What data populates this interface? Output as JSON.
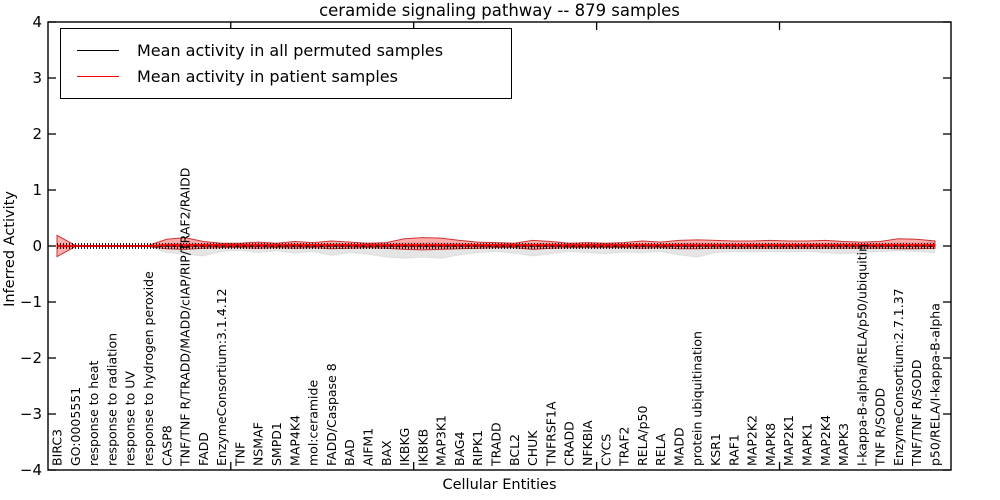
{
  "figure": {
    "title": "ceramide signaling pathway -- 879 samples"
  },
  "chart_data": {
    "type": "line",
    "title": "ceramide signaling pathway -- 879 samples",
    "xlabel": "Cellular Entities",
    "ylabel": "Inferred Activity",
    "ylim": [
      -4,
      4
    ],
    "ytick_labels": [
      "4",
      "3",
      "2",
      "1",
      "0",
      "−1",
      "−2",
      "−3",
      "−4"
    ],
    "ytick_values": [
      4,
      3,
      2,
      1,
      0,
      -1,
      -2,
      -3,
      -4
    ],
    "grid": false,
    "legend_position": "upper left",
    "colors": {
      "permuted_line": "#000000",
      "patient_line": "#ff0000",
      "permuted_band_fill": "rgba(0,0,0,0.10)",
      "patient_band_fill": "rgba(255,0,0,0.32)",
      "patient_band_edge": "#cc3333",
      "axis": "#000000"
    },
    "categories": [
      "BIRC3",
      "GO:0005551",
      "response to heat",
      "response to radiation",
      "response to UV",
      "response to hydrogen peroxide",
      "CASP8",
      "TNF/TNF R/TRADD/MADD/cIAP/RIP/TRAF2/RAIDD",
      "FADD",
      "EnzymeConsortium:3.1.4.12",
      "TNF",
      "NSMAF",
      "SMPD1",
      "MAP4K4",
      "mol:ceramide",
      "FADD/Caspase 8",
      "BAD",
      "AIFM1",
      "BAX",
      "IKBKG",
      "IKBKB",
      "MAP3K1",
      "BAG4",
      "RIPK1",
      "TRADD",
      "BCL2",
      "CHUK",
      "TNFRSF1A",
      "CRADD",
      "NFKBIA",
      "CYCS",
      "TRAF2",
      "RELA/p50",
      "RELA",
      "MADD",
      "protein ubiquitination",
      "KSR1",
      "RAF1",
      "MAP2K2",
      "MAPK8",
      "MAP2K1",
      "MAPK1",
      "MAP2K4",
      "MAPK3",
      "I-kappa-B-alpha/RELA/p50/ubiquitin",
      "TNF R/SODD",
      "EnzymeConsortium:2.7.1.37",
      "TNF/TNF R/SODD",
      "p50/RELA/I-kappa-B-alpha"
    ],
    "series": [
      {
        "name": "Mean activity in all permuted samples",
        "color": "#000000",
        "values": [
          0,
          0,
          0,
          0,
          0,
          0,
          0,
          0,
          0,
          0,
          0,
          0,
          0,
          0,
          0,
          0,
          0,
          0,
          0,
          0,
          0,
          0,
          0,
          0,
          0,
          0,
          0,
          0,
          0,
          0,
          0,
          0,
          0,
          0,
          0,
          0,
          0,
          0,
          0,
          0,
          0,
          0,
          0,
          0,
          0,
          0,
          0,
          0,
          0
        ]
      },
      {
        "name": "Mean activity in patient samples",
        "color": "#ff0000",
        "values": [
          0,
          0,
          0,
          0,
          0,
          0,
          0.02,
          0.02,
          0.02,
          0.02,
          0.02,
          0.02,
          0.02,
          0.02,
          0.02,
          0.02,
          0.02,
          0.02,
          0.02,
          0.02,
          0.02,
          0.02,
          0.02,
          0.02,
          0.02,
          0.02,
          0.02,
          0.02,
          0.02,
          0.02,
          0.02,
          0.02,
          0.02,
          0.02,
          0.02,
          0.02,
          0.02,
          0.02,
          0.02,
          0.02,
          0.02,
          0.02,
          0.02,
          0.02,
          0.02,
          0.02,
          0.02,
          0.02,
          0.02
        ]
      }
    ],
    "bands": [
      {
        "name": "permuted samples range",
        "upper": [
          0.03,
          0.01,
          0.01,
          0.01,
          0.01,
          0.01,
          0.05,
          0.06,
          0.05,
          0.04,
          0.04,
          0.05,
          0.04,
          0.05,
          0.04,
          0.05,
          0.04,
          0.04,
          0.05,
          0.06,
          0.06,
          0.06,
          0.05,
          0.04,
          0.04,
          0.04,
          0.05,
          0.05,
          0.04,
          0.04,
          0.04,
          0.04,
          0.05,
          0.04,
          0.05,
          0.06,
          0.05,
          0.04,
          0.04,
          0.05,
          0.04,
          0.04,
          0.05,
          0.05,
          0.04,
          0.05,
          0.06,
          0.06,
          0.07
        ],
        "lower": [
          -0.05,
          -0.01,
          -0.01,
          -0.01,
          -0.01,
          -0.01,
          -0.12,
          -0.15,
          -0.18,
          -0.1,
          -0.08,
          -0.12,
          -0.09,
          -0.13,
          -0.1,
          -0.17,
          -0.12,
          -0.15,
          -0.2,
          -0.22,
          -0.2,
          -0.22,
          -0.16,
          -0.12,
          -0.1,
          -0.13,
          -0.18,
          -0.14,
          -0.1,
          -0.12,
          -0.14,
          -0.11,
          -0.12,
          -0.1,
          -0.16,
          -0.2,
          -0.12,
          -0.1,
          -0.11,
          -0.1,
          -0.11,
          -0.1,
          -0.12,
          -0.14,
          -0.12,
          -0.1,
          -0.09,
          -0.1,
          -0.12
        ]
      },
      {
        "name": "patient samples range",
        "upper": [
          0.19,
          0.01,
          0.01,
          0.01,
          0.01,
          0.01,
          0.12,
          0.15,
          0.08,
          0.05,
          0.05,
          0.07,
          0.05,
          0.08,
          0.06,
          0.09,
          0.07,
          0.05,
          0.06,
          0.13,
          0.15,
          0.14,
          0.1,
          0.07,
          0.06,
          0.05,
          0.1,
          0.08,
          0.05,
          0.06,
          0.05,
          0.06,
          0.09,
          0.07,
          0.1,
          0.11,
          0.1,
          0.09,
          0.09,
          0.1,
          0.09,
          0.09,
          0.1,
          0.08,
          0.07,
          0.08,
          0.13,
          0.12,
          0.09
        ],
        "lower": [
          -0.19,
          -0.01,
          -0.01,
          -0.01,
          -0.01,
          -0.01,
          -0.05,
          -0.06,
          -0.04,
          -0.03,
          -0.03,
          -0.04,
          -0.03,
          -0.04,
          -0.03,
          -0.05,
          -0.04,
          -0.03,
          -0.04,
          -0.06,
          -0.07,
          -0.06,
          -0.05,
          -0.04,
          -0.03,
          -0.03,
          -0.06,
          -0.04,
          -0.03,
          -0.03,
          -0.03,
          -0.03,
          -0.04,
          -0.03,
          -0.05,
          -0.05,
          -0.04,
          -0.04,
          -0.04,
          -0.04,
          -0.04,
          -0.04,
          -0.04,
          -0.04,
          -0.04,
          -0.04,
          -0.05,
          -0.05,
          -0.04
        ]
      }
    ]
  }
}
